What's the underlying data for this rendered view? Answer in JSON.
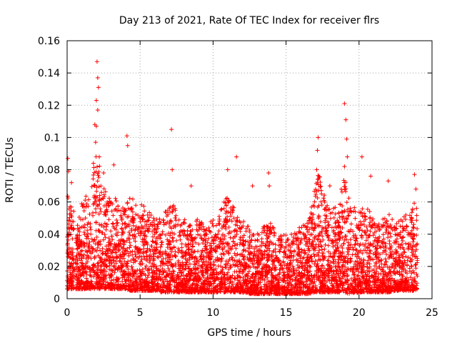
{
  "chart_data": {
    "type": "scatter",
    "title": "Day 213 of 2021, Rate Of TEC Index for receiver flrs",
    "xlabel": "GPS time / hours",
    "ylabel": "ROTI / TECUs",
    "xlim": [
      0,
      25
    ],
    "ylim": [
      0,
      0.16
    ],
    "xticks": [
      "0",
      "5",
      "10",
      "15",
      "20",
      "25"
    ],
    "yticks": [
      "0",
      "0.02",
      "0.04",
      "0.06",
      "0.08",
      "0.1",
      "0.12",
      "0.14",
      "0.16"
    ],
    "grid": true,
    "marker": "+",
    "color": "#ff0000",
    "envelope": {
      "x": [
        0.0,
        0.3,
        0.6,
        1.0,
        1.5,
        1.8,
        2.0,
        2.2,
        2.5,
        3.0,
        3.3,
        3.7,
        4.0,
        4.3,
        4.6,
        5.0,
        5.5,
        6.0,
        6.5,
        7.0,
        7.3,
        7.6,
        8.0,
        8.5,
        9.0,
        9.5,
        10.0,
        10.5,
        11.0,
        11.5,
        12.0,
        12.5,
        13.0,
        13.5,
        14.0,
        14.5,
        15.0,
        15.5,
        16.0,
        16.5,
        17.0,
        17.3,
        17.6,
        18.0,
        18.5,
        19.0,
        19.3,
        19.6,
        20.0,
        20.5,
        21.0,
        21.5,
        22.0,
        22.5,
        23.0,
        23.5,
        23.8,
        24.0
      ],
      "low": [
        0.006,
        0.006,
        0.006,
        0.006,
        0.006,
        0.006,
        0.006,
        0.006,
        0.006,
        0.006,
        0.006,
        0.006,
        0.006,
        0.005,
        0.005,
        0.005,
        0.005,
        0.005,
        0.004,
        0.004,
        0.004,
        0.004,
        0.004,
        0.004,
        0.004,
        0.004,
        0.004,
        0.004,
        0.004,
        0.004,
        0.004,
        0.003,
        0.003,
        0.003,
        0.003,
        0.003,
        0.003,
        0.003,
        0.003,
        0.003,
        0.004,
        0.004,
        0.004,
        0.004,
        0.004,
        0.004,
        0.003,
        0.003,
        0.004,
        0.004,
        0.004,
        0.004,
        0.004,
        0.005,
        0.005,
        0.005,
        0.005,
        0.006
      ],
      "high": [
        0.065,
        0.062,
        0.058,
        0.06,
        0.07,
        0.08,
        0.095,
        0.085,
        0.07,
        0.06,
        0.065,
        0.055,
        0.06,
        0.07,
        0.06,
        0.06,
        0.055,
        0.05,
        0.05,
        0.06,
        0.065,
        0.05,
        0.05,
        0.045,
        0.05,
        0.045,
        0.05,
        0.055,
        0.065,
        0.055,
        0.05,
        0.045,
        0.04,
        0.045,
        0.05,
        0.04,
        0.04,
        0.04,
        0.045,
        0.05,
        0.07,
        0.08,
        0.065,
        0.055,
        0.06,
        0.075,
        0.07,
        0.06,
        0.055,
        0.06,
        0.05,
        0.05,
        0.055,
        0.05,
        0.05,
        0.055,
        0.06,
        0.055
      ]
    },
    "outliers": [
      [
        0.05,
        0.087
      ],
      [
        0.1,
        0.079
      ],
      [
        0.3,
        0.072
      ],
      [
        1.8,
        0.084
      ],
      [
        1.9,
        0.108
      ],
      [
        2.05,
        0.147
      ],
      [
        2.1,
        0.137
      ],
      [
        2.15,
        0.131
      ],
      [
        2.0,
        0.123
      ],
      [
        2.1,
        0.117
      ],
      [
        2.0,
        0.107
      ],
      [
        1.95,
        0.097
      ],
      [
        2.2,
        0.088
      ],
      [
        2.5,
        0.078
      ],
      [
        3.2,
        0.083
      ],
      [
        4.1,
        0.101
      ],
      [
        4.15,
        0.095
      ],
      [
        7.15,
        0.105
      ],
      [
        7.2,
        0.08
      ],
      [
        8.5,
        0.07
      ],
      [
        11.0,
        0.08
      ],
      [
        11.6,
        0.088
      ],
      [
        12.7,
        0.07
      ],
      [
        13.8,
        0.078
      ],
      [
        13.85,
        0.07
      ],
      [
        17.2,
        0.1
      ],
      [
        17.15,
        0.092
      ],
      [
        17.1,
        0.08
      ],
      [
        18.0,
        0.07
      ],
      [
        19.0,
        0.121
      ],
      [
        19.1,
        0.111
      ],
      [
        19.15,
        0.099
      ],
      [
        19.2,
        0.088
      ],
      [
        19.0,
        0.082
      ],
      [
        20.2,
        0.088
      ],
      [
        20.8,
        0.076
      ],
      [
        22.0,
        0.073
      ],
      [
        23.8,
        0.077
      ],
      [
        23.9,
        0.068
      ]
    ],
    "seed": 213,
    "point_count": 5200
  }
}
